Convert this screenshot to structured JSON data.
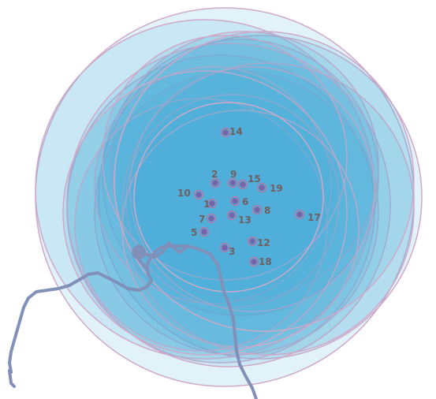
{
  "colors": {
    "circle_fill": "#4ab0d8",
    "circle_stroke": "#cfa9c8",
    "marker_fill": "#7565a8",
    "marker_stroke": "#b07aa8",
    "river": "#8090b8",
    "label": "#6f5f5f"
  },
  "stations": [
    {
      "id": "1",
      "label": "1"
    },
    {
      "id": "2",
      "label": "2"
    },
    {
      "id": "3",
      "label": "3"
    },
    {
      "id": "5",
      "label": "5"
    },
    {
      "id": "6",
      "label": "6"
    },
    {
      "id": "7",
      "label": "7"
    },
    {
      "id": "8",
      "label": "8"
    },
    {
      "id": "9",
      "label": "9"
    },
    {
      "id": "10",
      "label": "10"
    },
    {
      "id": "12",
      "label": "12"
    },
    {
      "id": "13",
      "label": "13"
    },
    {
      "id": "14",
      "label": "14"
    },
    {
      "id": "15",
      "label": "15"
    },
    {
      "id": "17",
      "label": "17"
    },
    {
      "id": "18",
      "label": "18"
    },
    {
      "id": "19",
      "label": "19"
    }
  ]
}
